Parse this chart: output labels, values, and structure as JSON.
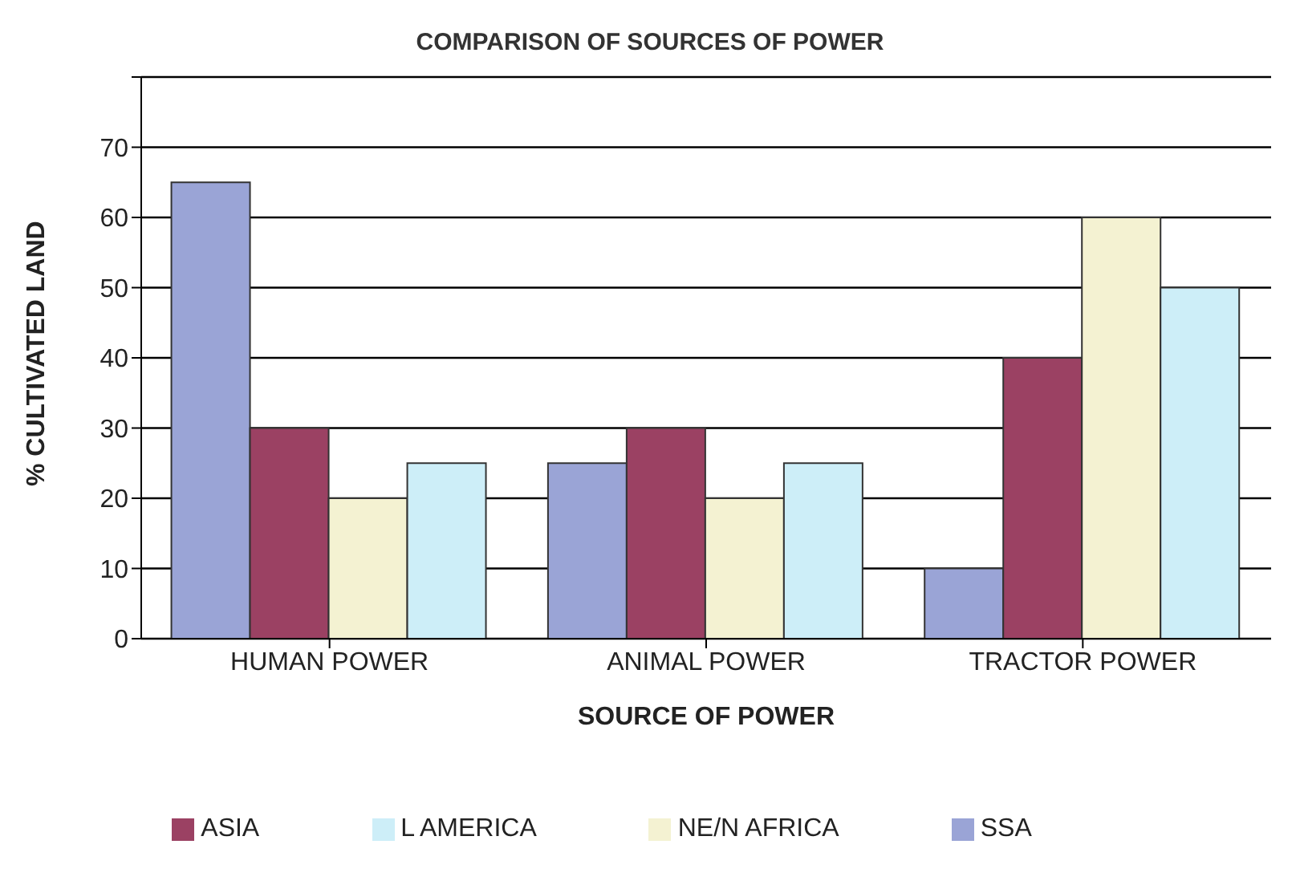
{
  "chart_data": {
    "type": "bar",
    "title": "COMPARISON OF SOURCES OF POWER",
    "xlabel": "SOURCE OF POWER",
    "ylabel": "% CULTIVATED LAND",
    "categories": [
      "HUMAN POWER",
      "ANIMAL POWER",
      "TRACTOR POWER"
    ],
    "series": [
      {
        "name": "SSA",
        "color": "#9aa4d6",
        "values": [
          65,
          25,
          10
        ]
      },
      {
        "name": "ASIA",
        "color": "#9b4163",
        "values": [
          30,
          30,
          40
        ]
      },
      {
        "name": "NE/N AFRICA",
        "color": "#f4f2d2",
        "values": [
          20,
          20,
          60
        ]
      },
      {
        "name": "L AMERICA",
        "color": "#cdeef8",
        "values": [
          25,
          25,
          50
        ]
      }
    ],
    "ylim": [
      0,
      80
    ],
    "yticks": [
      0,
      10,
      20,
      30,
      40,
      50,
      60,
      70,
      {
        "value": 80,
        "label": null
      }
    ],
    "grid": "y",
    "legend": "bottom"
  }
}
